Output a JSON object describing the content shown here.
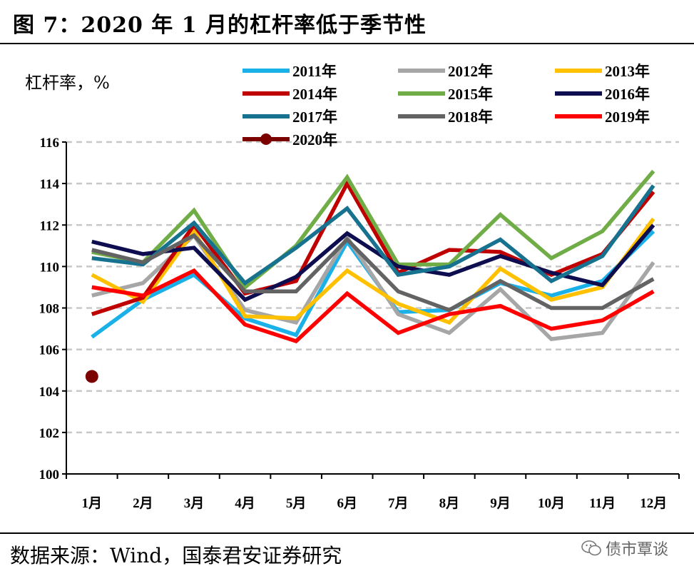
{
  "header": {
    "title": "图 7：2020 年 1 月的杠杆率低于季节性"
  },
  "footer": {
    "source": "数据来源：Wind，国泰君安证券研究",
    "watermark": "债市覃谈"
  },
  "colors": {
    "2011年": "#1ab0e8",
    "2012年": "#a6a6a6",
    "2013年": "#ffc000",
    "2014年": "#c00000",
    "2015年": "#70ad47",
    "2016年": "#0d0d50",
    "2017年": "#17728f",
    "2018年": "#636363",
    "2019年": "#ff0000",
    "2020年": "#7b0000"
  },
  "chart_data": {
    "type": "line",
    "title": "图 7：2020 年 1 月的杠杆率低于季节性",
    "ylabel": "杠杆率，%",
    "xlabel": "",
    "ylim": [
      100,
      116
    ],
    "yticks": [
      "100",
      "102",
      "104",
      "106",
      "108",
      "110",
      "112",
      "114",
      "116"
    ],
    "grid": "horizontal dashed",
    "legend": "top",
    "categories": [
      "1月",
      "2月",
      "3月",
      "4月",
      "5月",
      "6月",
      "7月",
      "8月",
      "9月",
      "10月",
      "11月",
      "12月"
    ],
    "series": [
      {
        "name": "2011年",
        "values": [
          106.6,
          108.4,
          109.6,
          107.5,
          106.7,
          111.2,
          107.8,
          107.9,
          109.2,
          108.6,
          109.3,
          111.7
        ]
      },
      {
        "name": "2012年",
        "values": [
          108.6,
          109.2,
          111.5,
          107.9,
          107.3,
          111.4,
          107.7,
          106.8,
          108.9,
          106.5,
          106.8,
          110.2
        ]
      },
      {
        "name": "2013年",
        "values": [
          109.6,
          108.3,
          111.7,
          107.6,
          107.5,
          109.8,
          108.2,
          107.3,
          109.9,
          108.4,
          109.0,
          112.3
        ]
      },
      {
        "name": "2014年",
        "values": [
          107.7,
          108.5,
          112.0,
          108.7,
          109.3,
          114.0,
          109.7,
          110.8,
          110.7,
          109.6,
          110.6,
          113.6
        ]
      },
      {
        "name": "2015年",
        "values": [
          110.7,
          110.2,
          112.7,
          109.0,
          111.0,
          114.3,
          110.1,
          110.1,
          112.5,
          110.4,
          111.7,
          114.6
        ]
      },
      {
        "name": "2016年",
        "values": [
          111.2,
          110.6,
          110.9,
          108.4,
          109.5,
          111.6,
          110.0,
          109.6,
          110.5,
          109.7,
          109.1,
          112.0
        ]
      },
      {
        "name": "2017年",
        "values": [
          110.4,
          110.1,
          112.1,
          109.2,
          110.9,
          112.8,
          109.6,
          110.0,
          111.3,
          109.3,
          110.5,
          113.9
        ]
      },
      {
        "name": "2018年",
        "values": [
          110.8,
          110.2,
          111.5,
          108.8,
          108.8,
          111.3,
          108.8,
          107.9,
          109.3,
          108.0,
          108.0,
          109.4
        ]
      },
      {
        "name": "2019年",
        "values": [
          109.0,
          108.6,
          109.8,
          107.2,
          106.4,
          108.7,
          106.8,
          107.7,
          108.1,
          107.0,
          107.4,
          108.8
        ]
      },
      {
        "name": "2020年",
        "values": [
          104.7,
          null,
          null,
          null,
          null,
          null,
          null,
          null,
          null,
          null,
          null,
          null
        ],
        "marker": "circle"
      }
    ]
  }
}
